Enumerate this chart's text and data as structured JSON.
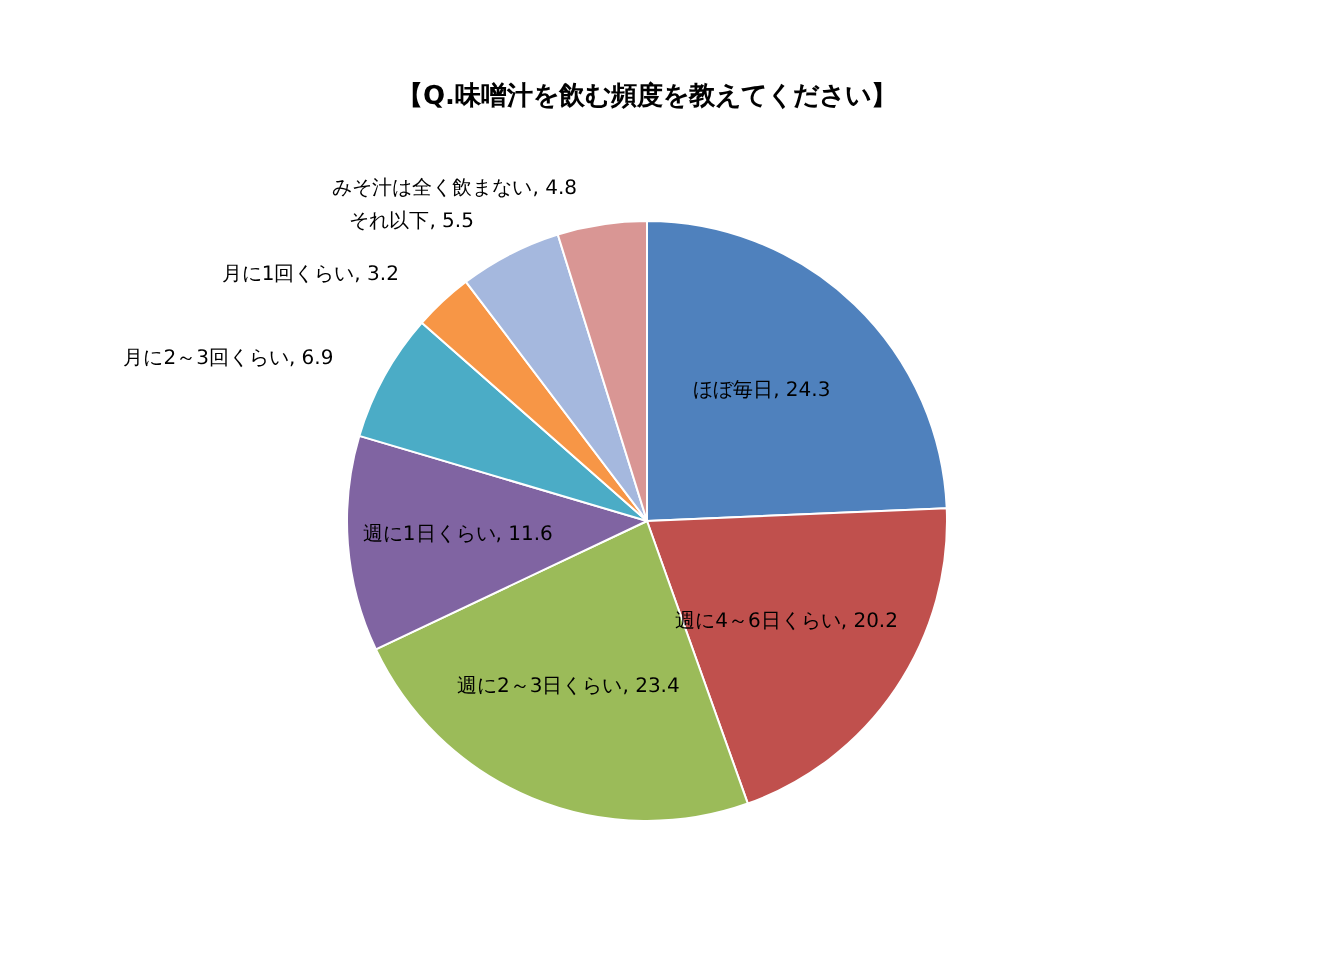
{
  "chart_data": {
    "type": "pie",
    "title": "【Q.味噌汁を飲む頻度を教えてください】",
    "categories": [
      "ほぼ毎日",
      "週に4～6日くらい",
      "週に2～3日くらい",
      "週に1日くらい",
      "月に2～3回くらい",
      "月に1回くらい",
      "それ以下",
      "みそ汁は全く飲まない"
    ],
    "values": [
      24.3,
      20.2,
      23.4,
      11.6,
      6.9,
      3.2,
      5.5,
      4.8
    ],
    "colors": [
      "#4f81bd",
      "#c0504d",
      "#9bbb59",
      "#8064a2",
      "#4bacc6",
      "#f79646",
      "#a5b8de",
      "#d99694"
    ],
    "value_labels": [
      ", 24.3",
      ", 20.2",
      ", 23.4",
      ", 11.6",
      ", 6.9",
      ", 3.2",
      ", 5.5",
      ", 4.8"
    ]
  }
}
